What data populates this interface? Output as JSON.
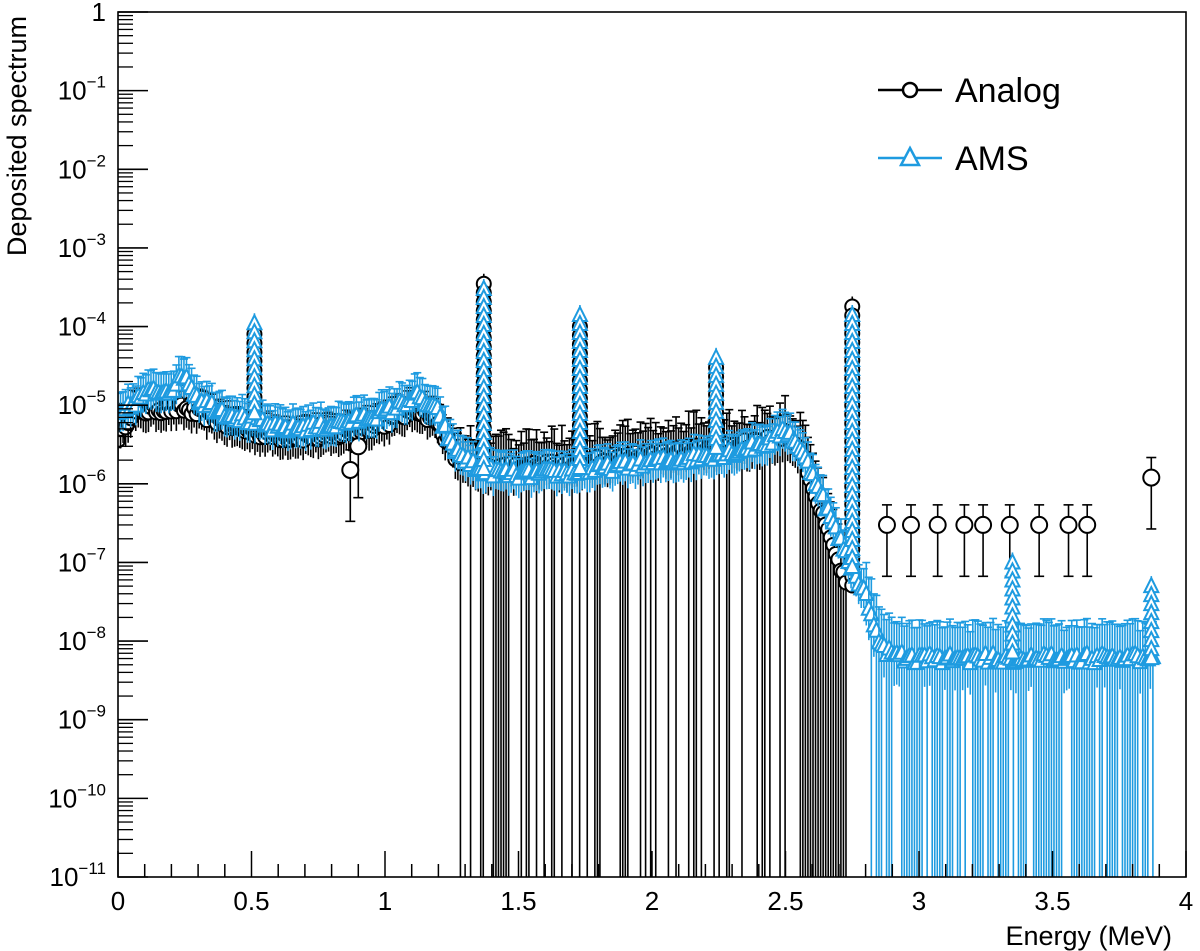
{
  "chart_data": {
    "type": "scatter",
    "title": "",
    "xlabel": "Energy (MeV)",
    "ylabel": "Deposited spectrum",
    "xlim": [
      0,
      4
    ],
    "ylim": [
      1e-11,
      1
    ],
    "yscale": "log",
    "grid": false,
    "legend_position": "top-right",
    "x_ticks": [
      {
        "value": 0,
        "label": "0"
      },
      {
        "value": 0.5,
        "label": "0.5"
      },
      {
        "value": 1,
        "label": "1"
      },
      {
        "value": 1.5,
        "label": "1.5"
      },
      {
        "value": 2,
        "label": "2"
      },
      {
        "value": 2.5,
        "label": "2.5"
      },
      {
        "value": 3,
        "label": "3"
      },
      {
        "value": 3.5,
        "label": "3.5"
      },
      {
        "value": 4,
        "label": "4"
      }
    ],
    "y_ticks": [
      {
        "exp": 0,
        "base": "1",
        "sup": ""
      },
      {
        "exp": -1,
        "base": "10",
        "sup": "−1"
      },
      {
        "exp": -2,
        "base": "10",
        "sup": "−2"
      },
      {
        "exp": -3,
        "base": "10",
        "sup": "−3"
      },
      {
        "exp": -4,
        "base": "10",
        "sup": "−4"
      },
      {
        "exp": -5,
        "base": "10",
        "sup": "−5"
      },
      {
        "exp": -6,
        "base": "10",
        "sup": "−6"
      },
      {
        "exp": -7,
        "base": "10",
        "sup": "−7"
      },
      {
        "exp": -8,
        "base": "10",
        "sup": "−8"
      },
      {
        "exp": -9,
        "base": "10",
        "sup": "−9"
      },
      {
        "exp": -10,
        "base": "10",
        "sup": "−10"
      },
      {
        "exp": -11,
        "base": "10",
        "sup": "−11"
      }
    ],
    "series": [
      {
        "name": "Analog",
        "marker": "open-circle",
        "color": "#000000",
        "continuum": [
          [
            0.0,
            4e-06
          ],
          [
            0.05,
            8e-06
          ],
          [
            0.15,
            9e-06
          ],
          [
            0.25,
            9e-06
          ],
          [
            0.35,
            7e-06
          ],
          [
            0.45,
            5e-06
          ],
          [
            0.6,
            4e-06
          ],
          [
            0.8,
            4e-06
          ],
          [
            1.0,
            6e-06
          ],
          [
            1.12,
            9e-06
          ],
          [
            1.2,
            6e-06
          ],
          [
            1.27,
            2e-06
          ],
          [
            1.35,
            1.6e-06
          ],
          [
            1.5,
            1.6e-06
          ],
          [
            1.7,
            1.8e-06
          ],
          [
            1.9,
            2.2e-06
          ],
          [
            2.1,
            2.6e-06
          ],
          [
            2.3,
            3e-06
          ],
          [
            2.45,
            3.5e-06
          ],
          [
            2.5,
            4.5e-06
          ],
          [
            2.55,
            3e-06
          ],
          [
            2.6,
            1e-06
          ],
          [
            2.65,
            3e-07
          ],
          [
            2.7,
            1e-07
          ],
          [
            2.73,
            5e-08
          ]
        ],
        "peaks": [
          {
            "energy": 0.511,
            "value": 8e-05
          },
          {
            "energy": 1.37,
            "value": 0.00035
          },
          {
            "energy": 1.73,
            "value": 0.0001
          },
          {
            "energy": 2.24,
            "value": 3e-05
          },
          {
            "energy": 2.75,
            "value": 0.00018
          }
        ],
        "isolated_points": [
          {
            "x": 0.87,
            "y": 1.5e-06
          },
          {
            "x": 0.9,
            "y": 3e-06
          },
          {
            "x": 2.88,
            "y": 3e-07
          },
          {
            "x": 2.97,
            "y": 3e-07
          },
          {
            "x": 3.07,
            "y": 3e-07
          },
          {
            "x": 3.17,
            "y": 3e-07
          },
          {
            "x": 3.24,
            "y": 3e-07
          },
          {
            "x": 3.34,
            "y": 3e-07
          },
          {
            "x": 3.45,
            "y": 3e-07
          },
          {
            "x": 3.56,
            "y": 3e-07
          },
          {
            "x": 3.63,
            "y": 3e-07
          },
          {
            "x": 3.87,
            "y": 1.2e-06
          }
        ]
      },
      {
        "name": "AMS",
        "marker": "open-triangle",
        "color": "#1e9be0",
        "continuum": [
          [
            0.0,
            7e-06
          ],
          [
            0.1,
            1.4e-05
          ],
          [
            0.2,
            1.6e-05
          ],
          [
            0.25,
            2.5e-05
          ],
          [
            0.3,
            1.2e-05
          ],
          [
            0.4,
            8e-06
          ],
          [
            0.6,
            5e-06
          ],
          [
            0.8,
            5.5e-06
          ],
          [
            1.0,
            8e-06
          ],
          [
            1.12,
            1.3e-05
          ],
          [
            1.2,
            8e-06
          ],
          [
            1.25,
            3e-06
          ],
          [
            1.35,
            1.5e-06
          ],
          [
            1.5,
            1.3e-06
          ],
          [
            1.7,
            1.4e-06
          ],
          [
            1.9,
            1.7e-06
          ],
          [
            2.1,
            2e-06
          ],
          [
            2.3,
            2.5e-06
          ],
          [
            2.45,
            3.5e-06
          ],
          [
            2.5,
            5e-06
          ],
          [
            2.55,
            3e-06
          ],
          [
            2.62,
            1e-06
          ],
          [
            2.68,
            3e-07
          ],
          [
            2.74,
            1e-07
          ],
          [
            2.8,
            4e-08
          ],
          [
            2.86,
            8e-09
          ],
          [
            2.95,
            6e-09
          ],
          [
            3.2,
            6e-09
          ],
          [
            3.5,
            6e-09
          ],
          [
            3.8,
            6e-09
          ],
          [
            3.88,
            6e-09
          ]
        ],
        "peaks": [
          {
            "energy": 0.511,
            "value": 0.00011
          },
          {
            "energy": 1.37,
            "value": 0.0003
          },
          {
            "energy": 1.73,
            "value": 0.00014
          },
          {
            "energy": 2.24,
            "value": 4e-05
          },
          {
            "energy": 2.75,
            "value": 0.00014
          },
          {
            "energy": 3.35,
            "value": 1e-07
          },
          {
            "energy": 3.87,
            "value": 5e-08
          }
        ]
      }
    ]
  }
}
